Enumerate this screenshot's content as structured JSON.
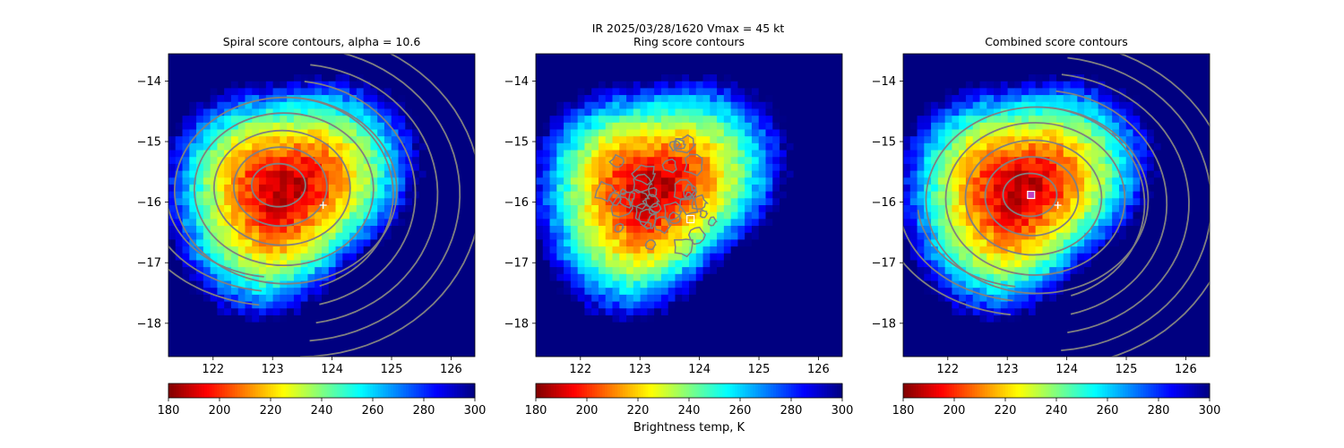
{
  "suptitle": "IR  2025/03/28/1620    Vmax = 45 kt",
  "colors": {
    "contour": "#808080",
    "marker": "#ffffff",
    "square_center": "#ffffff",
    "square_combined": "#c040c0"
  },
  "chart_data": [
    {
      "type": "heatmap",
      "title": "Spiral score contours, alpha = 10.6",
      "xlabel": "",
      "ylabel": "",
      "xlim": [
        121.25,
        126.4
      ],
      "ylim": [
        -18.55,
        -13.55
      ],
      "xticks": [
        122,
        123,
        124,
        125,
        126
      ],
      "yticks": [
        -14,
        -15,
        -16,
        -17,
        -18
      ],
      "colorbar": {
        "min": 180,
        "max": 300,
        "ticks": [
          180,
          200,
          220,
          240,
          260,
          280,
          300
        ],
        "colormap": "jet",
        "label": ""
      },
      "storm_center": [
        123.2,
        -15.8
      ],
      "overlay": "spiral",
      "contour_center": [
        123.1,
        -15.72
      ],
      "marker_plus": [
        123.85,
        -16.05
      ],
      "marker_square": null
    },
    {
      "type": "heatmap",
      "title": "Ring score contours",
      "xlabel": "",
      "ylabel": "",
      "xlim": [
        121.25,
        126.4
      ],
      "ylim": [
        -18.55,
        -13.55
      ],
      "xticks": [
        122,
        123,
        124,
        125,
        126
      ],
      "yticks": [
        -14,
        -15,
        -16,
        -17,
        -18
      ],
      "colorbar": {
        "min": 180,
        "max": 300,
        "ticks": [
          180,
          200,
          220,
          240,
          260,
          280,
          300
        ],
        "colormap": "jet",
        "label": "Brightness temp, K"
      },
      "storm_center": [
        123.2,
        -15.8
      ],
      "overlay": "ring",
      "contour_center": [
        123.4,
        -15.95
      ],
      "marker_plus": null,
      "marker_square": [
        123.85,
        -16.28
      ]
    },
    {
      "type": "heatmap",
      "title": "Combined score contours",
      "xlabel": "",
      "ylabel": "",
      "xlim": [
        121.25,
        126.4
      ],
      "ylim": [
        -18.55,
        -13.55
      ],
      "xticks": [
        122,
        123,
        124,
        125,
        126
      ],
      "yticks": [
        -14,
        -15,
        -16,
        -17,
        -18
      ],
      "colorbar": {
        "min": 180,
        "max": 300,
        "ticks": [
          180,
          200,
          220,
          240,
          260,
          280,
          300
        ],
        "colormap": "jet",
        "label": ""
      },
      "storm_center": [
        123.2,
        -15.8
      ],
      "overlay": "spiral",
      "contour_center": [
        123.38,
        -15.88
      ],
      "marker_plus": [
        123.85,
        -16.05
      ],
      "marker_square": [
        123.4,
        -15.88
      ]
    }
  ]
}
